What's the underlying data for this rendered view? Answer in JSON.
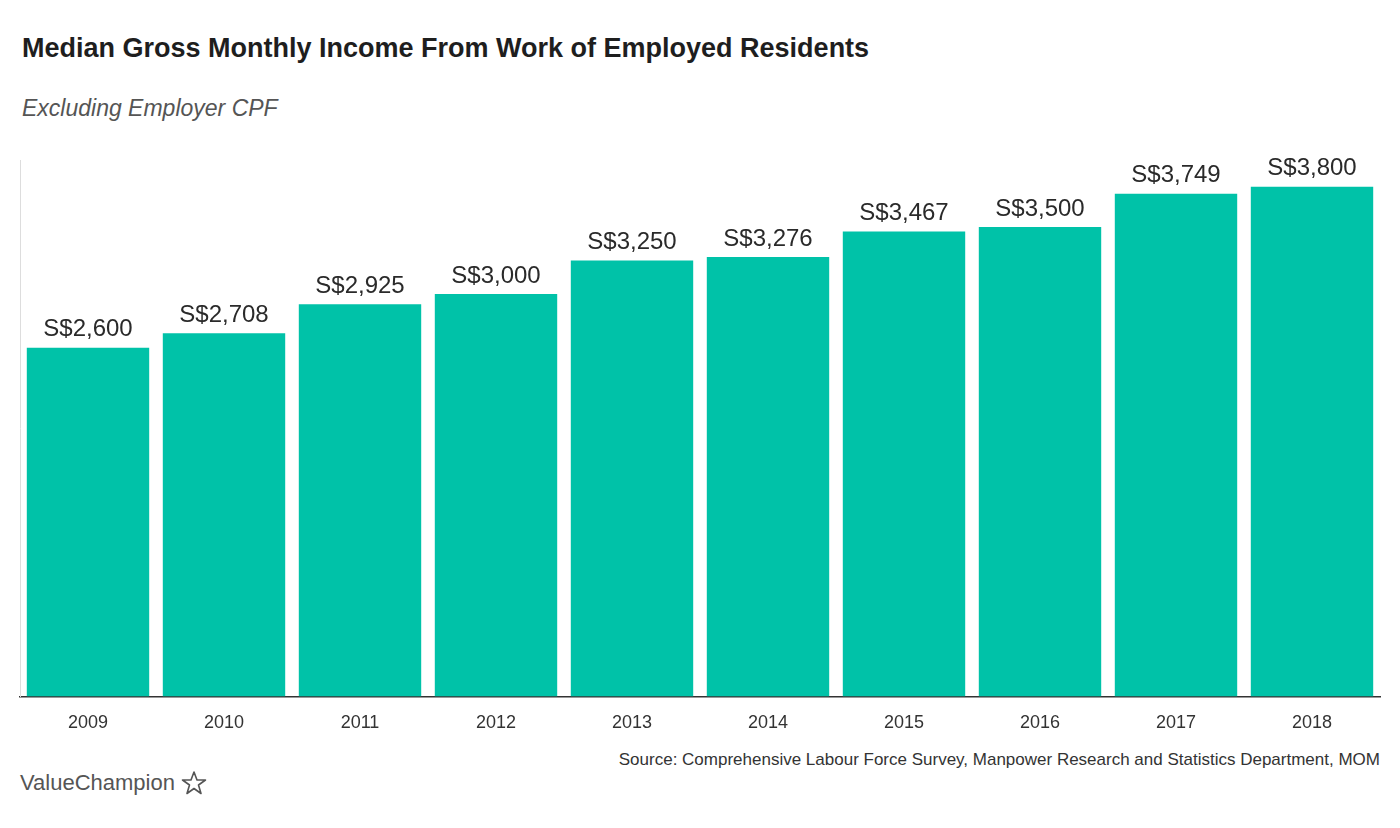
{
  "chart_data": {
    "type": "bar",
    "title": "Median Gross Monthly Income From Work of Employed Residents",
    "subtitle": "Excluding Employer CPF",
    "categories": [
      "2009",
      "2010",
      "2011",
      "2012",
      "2013",
      "2014",
      "2015",
      "2016",
      "2017",
      "2018"
    ],
    "values": [
      2600,
      2708,
      2925,
      3000,
      3250,
      3276,
      3467,
      3500,
      3749,
      3800
    ],
    "value_labels": [
      "S$2,600",
      "S$2,708",
      "S$2,925",
      "S$3,000",
      "S$3,250",
      "S$3,276",
      "S$3,467",
      "S$3,500",
      "S$3,749",
      "S$3,800"
    ],
    "color": "#00c2a8",
    "ylim": [
      0,
      4000
    ],
    "grid": false,
    "data_labels": true,
    "tick_labels": "x",
    "source": "Source: Comprehensive Labour Force Survey, Manpower Research and Statistics Department, MOM"
  },
  "logo_text": "ValueChampion"
}
